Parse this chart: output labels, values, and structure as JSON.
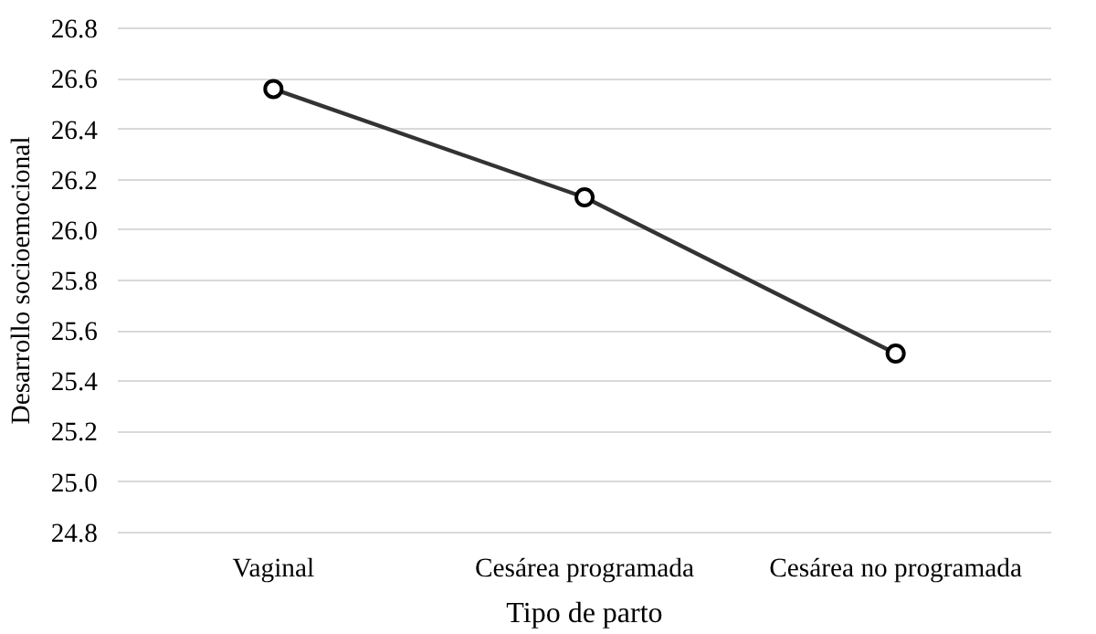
{
  "chart_data": {
    "type": "line",
    "xlabel": "Tipo de parto",
    "ylabel": "Desarrollo socioemocional",
    "categories": [
      "Vaginal",
      "Cesárea programada",
      "Cesárea no programada"
    ],
    "series": [
      {
        "color": "#333333",
        "values": [
          26.56,
          26.13,
          25.51
        ]
      }
    ],
    "ylim": [
      24.8,
      26.8
    ],
    "yticks": [
      {
        "value": 24.8,
        "label": "24.8"
      },
      {
        "value": 25.0,
        "label": "25.0"
      },
      {
        "value": 25.2,
        "label": "25.2"
      },
      {
        "value": 25.4,
        "label": "25.4"
      },
      {
        "value": 25.6,
        "label": "25.6"
      },
      {
        "value": 25.8,
        "label": "25.8"
      },
      {
        "value": 26.0,
        "label": "26.0"
      },
      {
        "value": 26.2,
        "label": "26.2"
      },
      {
        "value": 26.4,
        "label": "26.4"
      },
      {
        "value": 26.6,
        "label": "26.6"
      },
      {
        "value": 26.8,
        "label": "26.8"
      }
    ],
    "grid": "y",
    "marker": "circle",
    "line_style": "solid"
  }
}
